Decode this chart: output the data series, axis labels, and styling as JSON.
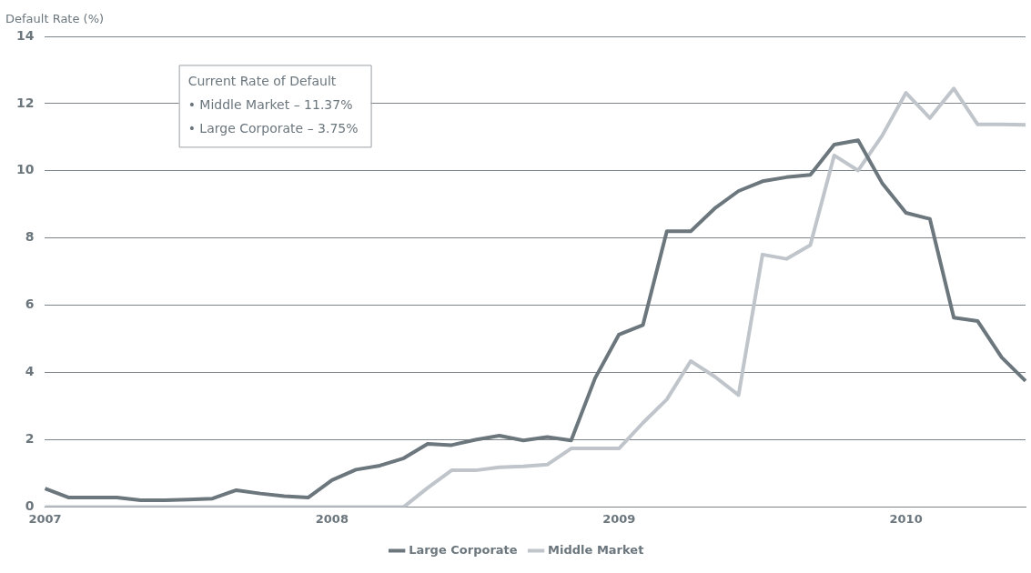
{
  "chart_data": {
    "type": "line",
    "ylabel": "Default Rate (%)",
    "categories": [
      "2007",
      null,
      null,
      null,
      null,
      null,
      null,
      null,
      null,
      null,
      null,
      null,
      "2008",
      null,
      null,
      null,
      null,
      null,
      null,
      null,
      null,
      null,
      null,
      null,
      "2009",
      null,
      null,
      null,
      null,
      null,
      null,
      null,
      null,
      null,
      null,
      null,
      "2010",
      null,
      null,
      null,
      null,
      null
    ],
    "series": [
      {
        "name": "Large Corporate",
        "color": "#6b767d",
        "values": [
          0.55,
          0.28,
          0.28,
          0.28,
          0.2,
          0.2,
          0.22,
          0.25,
          0.5,
          0.4,
          0.32,
          0.28,
          0.8,
          1.11,
          1.23,
          1.45,
          1.88,
          1.84,
          2.0,
          2.12,
          1.98,
          2.08,
          1.98,
          3.83,
          5.13,
          5.41,
          8.2,
          8.2,
          8.88,
          9.4,
          9.69,
          9.81,
          9.88,
          10.78,
          10.91,
          9.64,
          8.75,
          8.57,
          5.63,
          5.53,
          4.45,
          3.75
        ]
      },
      {
        "name": "Middle Market",
        "color": "#bfc5ca",
        "values": [
          0,
          0,
          0,
          0,
          0,
          0,
          0,
          0,
          0,
          0,
          0,
          0,
          0,
          0,
          0,
          0,
          0.57,
          1.09,
          1.09,
          1.18,
          1.21,
          1.26,
          1.74,
          1.74,
          1.74,
          2.5,
          3.2,
          4.34,
          3.88,
          3.33,
          7.51,
          7.38,
          7.79,
          10.46,
          10.01,
          11.04,
          12.32,
          11.57,
          12.45,
          11.38,
          11.38,
          11.37
        ]
      }
    ],
    "ylim": [
      0,
      14
    ],
    "yticks": [
      0,
      2,
      4,
      6,
      8,
      10,
      12,
      14
    ],
    "grid": "y",
    "legend": "bottom",
    "marker": "none",
    "line_style": "solid",
    "annotations": [
      "Current Rate of Default",
      "• Middle Market – 11.37%",
      "• Large Corporate – 3.75%"
    ]
  }
}
